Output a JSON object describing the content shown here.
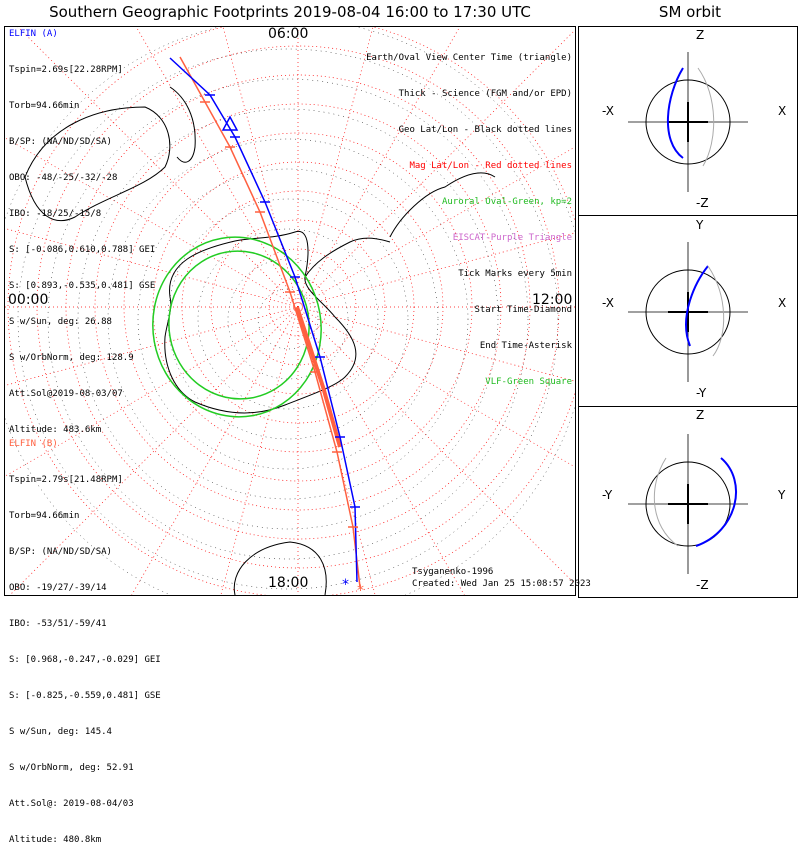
{
  "title": "Southern Geographic Footprints 2019-08-04 16:00 to 17:30 UTC",
  "sm_title": "SM orbit",
  "hour_labels": {
    "top": "06:00",
    "left": "00:00",
    "right": "12:00",
    "bottom": "18:00"
  },
  "elfin_a": {
    "name": "ELFIN (A)",
    "lines": [
      "Tspin=2.69s[22.28RPM]",
      "Torb=94.66min",
      "B/SP: (NA/ND/SD/SA)",
      "OBO: -48/-25/-32/-28",
      "IBO: -18/25/-15/8",
      "S: [-0.086,0.610,0.788] GEI",
      "S: [0.893,-0.535,0.481] GSE",
      "S w/Sun, deg: 26.88",
      "S w/OrbNorm, deg: 128.9",
      "Att.Sol@2019-08-03/07",
      "Altitude: 483.6km"
    ]
  },
  "elfin_b": {
    "name": "ELFIN (B)",
    "lines": [
      "Tspin=2.79s[21.48RPM]",
      "Torb=94.66min",
      "B/SP: (NA/ND/SD/SA)",
      "OBO: -19/27/-39/14",
      "IBO: -53/51/-59/41",
      "S: [0.968,-0.247,-0.029] GEI",
      "S: [-0.825,-0.559,0.481] GSE",
      "S w/Sun, deg: 145.4",
      "S w/OrbNorm, deg: 52.91",
      "Att.Sol@: 2019-08-04/03",
      "Altitude: 480.8km"
    ]
  },
  "legend": [
    {
      "text": "Earth/Oval View Center Time (triangle)",
      "color": "#000000"
    },
    {
      "text": "Thick - Science (FGM and/or EPD)",
      "color": "#000000"
    },
    {
      "text": "Geo Lat/Lon - Black dotted lines",
      "color": "#000000"
    },
    {
      "text": "Mag Lat/Lon - Red dotted lines",
      "color": "#ff0000"
    },
    {
      "text": "Auroral Oval-Green, kp=2",
      "color": "#22bb22"
    },
    {
      "text": "EISCAT-Purple Triangle",
      "color": "#cc66cc"
    },
    {
      "text": "Tick Marks every 5min",
      "color": "#000000"
    },
    {
      "text": "Start Time-Diamond",
      "color": "#000000"
    },
    {
      "text": "End Time-Asterisk",
      "color": "#000000"
    },
    {
      "text": "VLF-Green Square",
      "color": "#22bb22"
    }
  ],
  "footer": {
    "model": "Tsyganenko-1996",
    "created": "Created: Wed Jan 25 15:08:57 2023"
  },
  "sm_panels": [
    {
      "top": "Z",
      "bottom": "-Z",
      "left": "-X",
      "right": "X"
    },
    {
      "top": "Y",
      "bottom": "-Y",
      "left": "-X",
      "right": "X"
    },
    {
      "top": "Z",
      "bottom": "-Z",
      "left": "-Y",
      "right": "Y"
    }
  ],
  "colors": {
    "probe_a": "#0000ff",
    "probe_b": "#ff6040",
    "oval": "#22cc22",
    "mag_grid": "#ff0000",
    "eiscat": "#cc66cc"
  }
}
